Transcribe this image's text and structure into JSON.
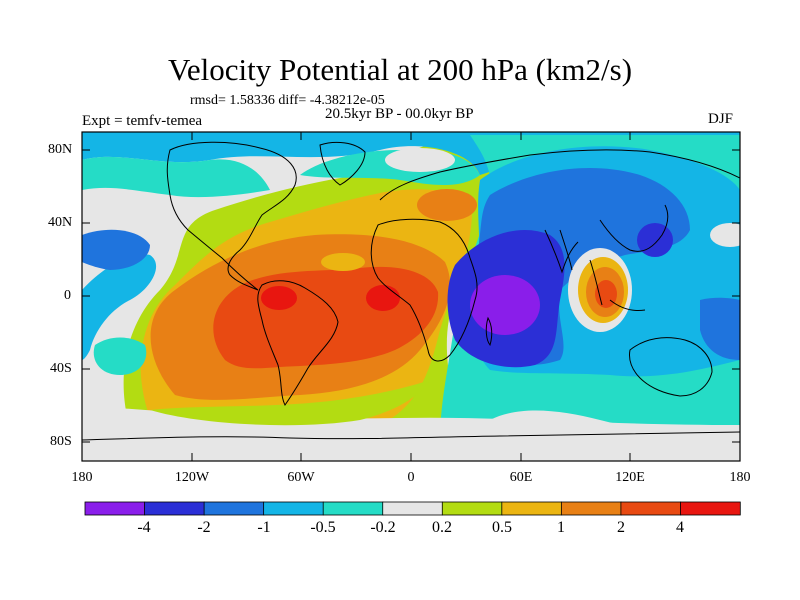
{
  "title": "Velocity Potential at 200 hPa (km2/s)",
  "stats": "rmsd= 1.58336 diff= -4.38212e-05",
  "left_label": "Expt = temfv-temea",
  "center_label": "20.5kyr BP - 00.0kyr BP",
  "right_label": "DJF",
  "lat_ticks": [
    "80N",
    "40N",
    "0",
    "40S",
    "80S"
  ],
  "lon_ticks": [
    "180",
    "120W",
    "60W",
    "0",
    "60E",
    "120E",
    "180"
  ],
  "colorbar": {
    "labels": [
      "-4",
      "-2",
      "-1",
      "-0.5",
      "-0.2",
      "0.2",
      "0.5",
      "1",
      "2",
      "4"
    ],
    "colors": [
      "#8a1eea",
      "#2b2fd6",
      "#1f74dd",
      "#14b5e6",
      "#25dcc6",
      "#e6e6e6",
      "#b3dc12",
      "#ebb512",
      "#e88015",
      "#e84a12",
      "#e81610"
    ]
  }
}
